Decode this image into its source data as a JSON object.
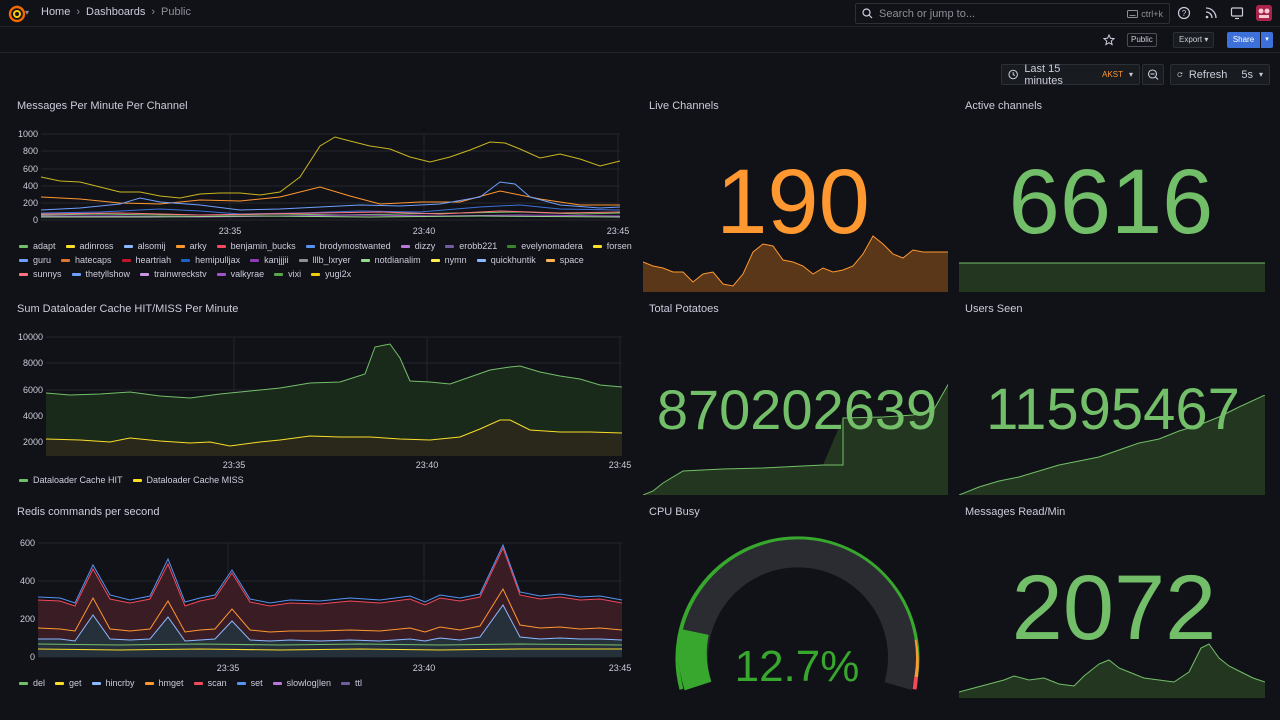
{
  "topnav": {
    "breadcrumbs": [
      {
        "label": "Home"
      },
      {
        "label": "Dashboards"
      },
      {
        "label": "Public"
      }
    ],
    "search_placeholder": "Search or jump to...",
    "search_shortcut": "ctrl+k"
  },
  "toolbar": {
    "public_badge": "Public",
    "export_label": "Export",
    "share_label": "Share",
    "time_range": "Last 15 minutes",
    "timezone": "AKST",
    "refresh_label": "Refresh",
    "refresh_interval": "5s"
  },
  "colors": {
    "green": "#73bf69",
    "orange": "#ff9830",
    "yellow": "#fade2a",
    "blue": "#5794f2",
    "red": "#f2495c",
    "purple": "#b877d9"
  },
  "panels": {
    "messages_per_minute": {
      "title": "Messages Per Minute Per Channel",
      "y_ticks": [
        "1000",
        "800",
        "600",
        "400",
        "200",
        "0"
      ],
      "x_ticks": [
        "23:35",
        "23:40",
        "23:45"
      ],
      "legend": [
        {
          "name": "adapt",
          "color": "#73bf69"
        },
        {
          "name": "adinross",
          "color": "#fade2a"
        },
        {
          "name": "alsomij",
          "color": "#8ab8ff"
        },
        {
          "name": "arky",
          "color": "#ff9830"
        },
        {
          "name": "benjamin_bucks",
          "color": "#f2495c"
        },
        {
          "name": "brodymostwanted",
          "color": "#5794f2"
        },
        {
          "name": "dizzy",
          "color": "#b877d9"
        },
        {
          "name": "erobb221",
          "color": "#705da0"
        },
        {
          "name": "evelynomadera",
          "color": "#37872d"
        },
        {
          "name": "forsen",
          "color": "#fade2a"
        },
        {
          "name": "guru",
          "color": "#6e9fff"
        },
        {
          "name": "hatecaps",
          "color": "#e0752d"
        },
        {
          "name": "heartriah",
          "color": "#c4162a"
        },
        {
          "name": "hemipulljax",
          "color": "#1f60c4"
        },
        {
          "name": "kanjjjii",
          "color": "#8f3bb8"
        },
        {
          "name": "lllb_lxryer",
          "color": "#8e8e99"
        },
        {
          "name": "notdianalim",
          "color": "#96d98d"
        },
        {
          "name": "nymn",
          "color": "#ffee52"
        },
        {
          "name": "quickhuntik",
          "color": "#8ab8ff"
        },
        {
          "name": "space",
          "color": "#ffb357"
        },
        {
          "name": "sunnys",
          "color": "#ff7383"
        },
        {
          "name": "thetyllshow",
          "color": "#6e9fff"
        },
        {
          "name": "trainwreckstv",
          "color": "#ca95e5"
        },
        {
          "name": "valkyrae",
          "color": "#a352cc"
        },
        {
          "name": "vixi",
          "color": "#56a64b"
        },
        {
          "name": "yugi2x",
          "color": "#f2cc0c"
        }
      ]
    },
    "live_channels": {
      "title": "Live Channels",
      "value": "190",
      "color": "#ff9830"
    },
    "active_channels": {
      "title": "Active channels",
      "value": "6616",
      "color": "#73bf69"
    },
    "dataloader": {
      "title": "Sum Dataloader Cache HIT/MISS Per Minute",
      "y_ticks": [
        "10000",
        "8000",
        "6000",
        "4000",
        "2000"
      ],
      "x_ticks": [
        "23:35",
        "23:40",
        "23:45"
      ],
      "legend": [
        {
          "name": "Dataloader Cache HIT",
          "color": "#73bf69"
        },
        {
          "name": "Dataloader Cache MISS",
          "color": "#fade2a"
        }
      ]
    },
    "total_potatoes": {
      "title": "Total Potatoes",
      "value": "870202639",
      "color": "#73bf69"
    },
    "users_seen": {
      "title": "Users Seen",
      "value": "11595467",
      "color": "#73bf69"
    },
    "redis": {
      "title": "Redis commands per second",
      "y_ticks": [
        "600",
        "400",
        "200",
        "0"
      ],
      "x_ticks": [
        "23:35",
        "23:40",
        "23:45"
      ],
      "legend": [
        {
          "name": "del",
          "color": "#73bf69"
        },
        {
          "name": "get",
          "color": "#fade2a"
        },
        {
          "name": "hincrby",
          "color": "#8ab8ff"
        },
        {
          "name": "hmget",
          "color": "#ff9830"
        },
        {
          "name": "scan",
          "color": "#f2495c"
        },
        {
          "name": "set",
          "color": "#5794f2"
        },
        {
          "name": "slowlog|len",
          "color": "#b877d9"
        },
        {
          "name": "ttl",
          "color": "#705da0"
        }
      ]
    },
    "cpu_busy": {
      "title": "CPU Busy",
      "value": "12.7%",
      "percent": 12.7,
      "color": "#37a72d"
    },
    "messages_read": {
      "title": "Messages Read/Min",
      "value": "2072",
      "color": "#73bf69"
    }
  }
}
